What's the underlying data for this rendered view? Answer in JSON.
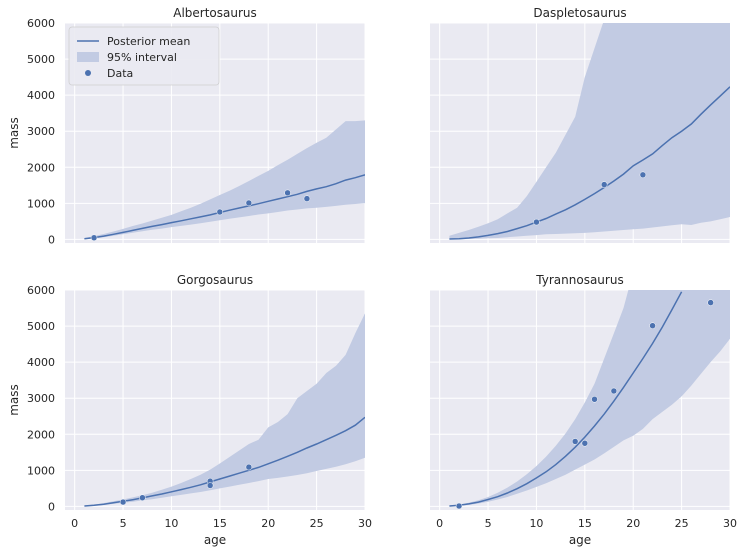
{
  "chart_data": [
    {
      "type": "line",
      "title": "Albertosaurus",
      "xlabel": "",
      "ylabel": "mass",
      "xlim": [
        -1,
        30
      ],
      "ylim": [
        -100,
        6000
      ],
      "xticks": [
        0,
        5,
        10,
        15,
        20,
        25,
        30
      ],
      "yticks": [
        0,
        1000,
        2000,
        3000,
        4000,
        5000,
        6000
      ],
      "show_x_ticklabels": false,
      "show_y_ticklabels": true,
      "mean": {
        "x": [
          1,
          2,
          3,
          4,
          5,
          6,
          7,
          8,
          9,
          10,
          11,
          12,
          13,
          14,
          15,
          16,
          17,
          18,
          19,
          20,
          21,
          22,
          23,
          24,
          25,
          26,
          27,
          28,
          29,
          30
        ],
        "y": [
          20,
          50,
          90,
          140,
          195,
          250,
          305,
          360,
          410,
          465,
          515,
          570,
          625,
          680,
          745,
          810,
          870,
          930,
          990,
          1055,
          1120,
          1185,
          1250,
          1330,
          1400,
          1460,
          1545,
          1645,
          1710,
          1790
        ]
      },
      "band": {
        "x": [
          1,
          2,
          3,
          4,
          5,
          6,
          7,
          8,
          9,
          10,
          11,
          12,
          13,
          14,
          15,
          16,
          17,
          18,
          19,
          20,
          21,
          22,
          23,
          24,
          25,
          26,
          27,
          28,
          29,
          30
        ],
        "lower": [
          10,
          30,
          60,
          100,
          140,
          185,
          225,
          265,
          300,
          340,
          375,
          410,
          450,
          490,
          530,
          570,
          610,
          650,
          690,
          720,
          760,
          800,
          830,
          860,
          880,
          900,
          930,
          960,
          980,
          1000
        ],
        "upper": [
          40,
          90,
          150,
          220,
          290,
          370,
          440,
          520,
          600,
          680,
          780,
          880,
          990,
          1110,
          1230,
          1350,
          1480,
          1620,
          1760,
          1900,
          2060,
          2210,
          2370,
          2530,
          2680,
          2820,
          3050,
          3280,
          3280,
          3300
        ]
      },
      "points": {
        "x": [
          2,
          15,
          18,
          22,
          24
        ],
        "y": [
          45,
          760,
          1010,
          1290,
          1130
        ]
      },
      "legend": {
        "position": "upper-left",
        "entries": [
          "Posterior mean",
          "95% interval",
          "Data"
        ]
      }
    },
    {
      "type": "line",
      "title": "Daspletosaurus",
      "xlabel": "",
      "ylabel": "",
      "xlim": [
        -1,
        30
      ],
      "ylim": [
        -100,
        6000
      ],
      "xticks": [
        0,
        5,
        10,
        15,
        20,
        25,
        30
      ],
      "yticks": [
        0,
        1000,
        2000,
        3000,
        4000,
        5000,
        6000
      ],
      "show_x_ticklabels": false,
      "show_y_ticklabels": false,
      "mean": {
        "x": [
          1,
          2,
          3,
          4,
          5,
          6,
          7,
          8,
          9,
          10,
          11,
          12,
          13,
          14,
          15,
          16,
          17,
          18,
          19,
          20,
          21,
          22,
          23,
          24,
          25,
          26,
          27,
          28,
          29,
          30
        ],
        "y": [
          10,
          20,
          40,
          70,
          110,
          160,
          220,
          300,
          380,
          480,
          580,
          700,
          820,
          960,
          1110,
          1270,
          1440,
          1620,
          1810,
          2040,
          2200,
          2370,
          2600,
          2820,
          3000,
          3200,
          3470,
          3730,
          3980,
          4230
        ]
      },
      "band": {
        "x": [
          1,
          2,
          3,
          4,
          5,
          6,
          7,
          8,
          9,
          10,
          11,
          12,
          13,
          14,
          15,
          16,
          17,
          18,
          19,
          20,
          21,
          22,
          23,
          24,
          25,
          26,
          27,
          28,
          29,
          30
        ],
        "lower": [
          0,
          5,
          10,
          20,
          30,
          40,
          60,
          80,
          100,
          120,
          140,
          150,
          160,
          170,
          180,
          200,
          220,
          240,
          260,
          280,
          300,
          330,
          360,
          390,
          420,
          400,
          460,
          500,
          560,
          620
        ],
        "upper": [
          100,
          180,
          260,
          350,
          450,
          560,
          720,
          880,
          1200,
          1600,
          2000,
          2400,
          2900,
          3400,
          4500,
          5300,
          6100,
          6500,
          6500,
          6500,
          6500,
          6500,
          6500,
          6500,
          6500,
          6500,
          6500,
          6500,
          6500,
          6500
        ]
      },
      "points": {
        "x": [
          10,
          17,
          21
        ],
        "y": [
          480,
          1520,
          1790
        ]
      }
    },
    {
      "type": "line",
      "title": "Gorgosaurus",
      "xlabel": "age",
      "ylabel": "mass",
      "xlim": [
        -1,
        30
      ],
      "ylim": [
        -100,
        6000
      ],
      "xticks": [
        0,
        5,
        10,
        15,
        20,
        25,
        30
      ],
      "yticks": [
        0,
        1000,
        2000,
        3000,
        4000,
        5000,
        6000
      ],
      "show_x_ticklabels": true,
      "show_y_ticklabels": true,
      "mean": {
        "x": [
          1,
          2,
          3,
          4,
          5,
          6,
          7,
          8,
          9,
          10,
          11,
          12,
          13,
          14,
          15,
          16,
          17,
          18,
          19,
          20,
          21,
          22,
          23,
          24,
          25,
          26,
          27,
          28,
          29,
          30
        ],
        "y": [
          10,
          30,
          60,
          100,
          140,
          185,
          235,
          290,
          345,
          405,
          465,
          530,
          600,
          680,
          760,
          840,
          920,
          1000,
          1080,
          1180,
          1280,
          1390,
          1500,
          1620,
          1730,
          1850,
          1970,
          2100,
          2250,
          2470
        ]
      },
      "band": {
        "x": [
          1,
          2,
          3,
          4,
          5,
          6,
          7,
          8,
          9,
          10,
          11,
          12,
          13,
          14,
          15,
          16,
          17,
          18,
          19,
          20,
          21,
          22,
          23,
          24,
          25,
          26,
          27,
          28,
          29,
          30
        ],
        "lower": [
          5,
          15,
          40,
          70,
          100,
          130,
          165,
          200,
          240,
          280,
          320,
          360,
          400,
          450,
          500,
          550,
          600,
          650,
          700,
          760,
          790,
          830,
          870,
          920,
          980,
          1040,
          1100,
          1170,
          1250,
          1350
        ],
        "upper": [
          20,
          50,
          90,
          140,
          190,
          250,
          310,
          380,
          460,
          550,
          650,
          760,
          880,
          1020,
          1190,
          1370,
          1550,
          1730,
          1850,
          2190,
          2340,
          2560,
          3000,
          3200,
          3400,
          3700,
          3900,
          4200,
          4800,
          5350
        ]
      },
      "points": {
        "x": [
          5,
          7,
          14,
          14,
          18
        ],
        "y": [
          120,
          240,
          700,
          580,
          1090
        ]
      }
    },
    {
      "type": "line",
      "title": "Tyrannosaurus",
      "xlabel": "age",
      "ylabel": "",
      "xlim": [
        -1,
        30
      ],
      "ylim": [
        -100,
        6000
      ],
      "xticks": [
        0,
        5,
        10,
        15,
        20,
        25,
        30
      ],
      "yticks": [
        0,
        1000,
        2000,
        3000,
        4000,
        5000,
        6000
      ],
      "show_x_ticklabels": true,
      "show_y_ticklabels": false,
      "mean": {
        "x": [
          1,
          2,
          3,
          4,
          5,
          6,
          7,
          8,
          9,
          10,
          11,
          12,
          13,
          14,
          15,
          16,
          17,
          18,
          19,
          20,
          21,
          22,
          23,
          24,
          25
        ],
        "y": [
          10,
          30,
          70,
          120,
          190,
          270,
          370,
          490,
          630,
          790,
          960,
          1160,
          1390,
          1640,
          1920,
          2230,
          2560,
          2920,
          3300,
          3700,
          4100,
          4520,
          4970,
          5450,
          5950
        ]
      },
      "band": {
        "x": [
          1,
          2,
          3,
          4,
          5,
          6,
          7,
          8,
          9,
          10,
          11,
          12,
          13,
          14,
          15,
          16,
          17,
          18,
          19,
          20,
          21,
          22,
          23,
          24,
          25,
          26,
          27,
          28,
          29,
          30
        ],
        "lower": [
          5,
          20,
          40,
          80,
          130,
          190,
          260,
          350,
          440,
          540,
          640,
          760,
          880,
          1020,
          1160,
          1300,
          1470,
          1650,
          1830,
          1960,
          2150,
          2420,
          2620,
          2820,
          3050,
          3350,
          3680,
          4000,
          4300,
          4650
        ],
        "upper": [
          15,
          45,
          100,
          170,
          260,
          380,
          520,
          690,
          890,
          1120,
          1380,
          1680,
          2020,
          2420,
          2880,
          3400,
          4100,
          4800,
          5500,
          6500,
          6500,
          6500,
          6500,
          6500,
          6500,
          6500,
          6500,
          6500,
          6500,
          6500
        ]
      },
      "points": {
        "x": [
          2,
          14,
          15,
          16,
          18,
          22,
          28
        ],
        "y": [
          10,
          1800,
          1750,
          2970,
          3200,
          5010,
          5650
        ]
      }
    }
  ],
  "colors": {
    "line": "#4c72b0",
    "band": "#c2cbe3",
    "points": "#4c72b0",
    "axes_bg": "#eaeaf2",
    "grid": "#ffffff"
  }
}
